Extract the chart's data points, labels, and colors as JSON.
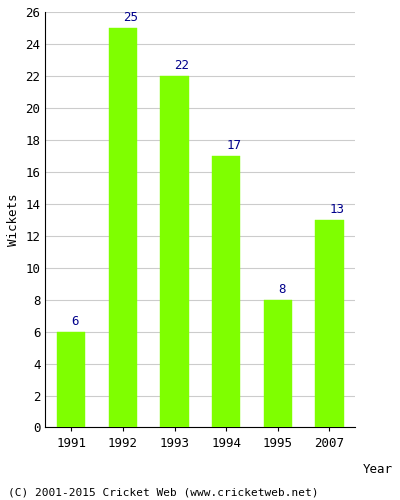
{
  "years": [
    "1991",
    "1992",
    "1993",
    "1994",
    "1995",
    "2007"
  ],
  "values": [
    6,
    25,
    22,
    17,
    8,
    13
  ],
  "bar_color": "#7FFF00",
  "bar_edgecolor": "#7FFF00",
  "label_color": "#00008B",
  "ylabel": "Wickets",
  "xlabel": "Year",
  "ylim": [
    0,
    26
  ],
  "yticks": [
    0,
    2,
    4,
    6,
    8,
    10,
    12,
    14,
    16,
    18,
    20,
    22,
    24,
    26
  ],
  "grid_color": "#cccccc",
  "bg_color": "#ffffff",
  "fig_bg_color": "#ffffff",
  "footer": "(C) 2001-2015 Cricket Web (www.cricketweb.net)",
  "label_fontsize": 9,
  "axis_fontsize": 9,
  "footer_fontsize": 8,
  "bar_width": 0.55
}
